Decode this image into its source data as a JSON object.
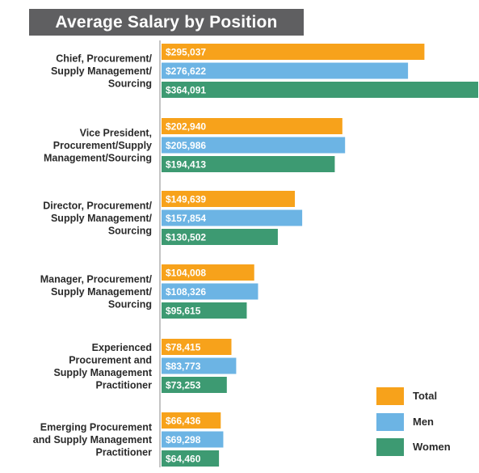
{
  "chart_data": {
    "type": "bar",
    "orientation": "horizontal",
    "title": "Average Salary by Position",
    "categories": [
      [
        "Chief, Procurement/",
        "Supply Management/",
        "Sourcing"
      ],
      [
        "Vice President,",
        "Procurement/Supply",
        "Management/Sourcing"
      ],
      [
        "Director, Procurement/",
        "Supply Management/",
        "Sourcing"
      ],
      [
        "Manager, Procurement/",
        "Supply Management/",
        "Sourcing"
      ],
      [
        "Experienced",
        "Procurement and",
        "Supply Management",
        "Practitioner"
      ],
      [
        "Emerging Procurement",
        "and Supply Management",
        "Practitioner"
      ]
    ],
    "series": [
      {
        "name": "Total",
        "color": "#f7a21b",
        "values": [
          295037,
          202940,
          149639,
          104008,
          78415,
          66436
        ],
        "labels": [
          "$295,037",
          "$202,940",
          "$149,639",
          "$104,008",
          "$78,415",
          "$66,436"
        ]
      },
      {
        "name": "Men",
        "color": "#6cb4e4",
        "values": [
          276622,
          205986,
          157854,
          108326,
          83773,
          69298
        ],
        "labels": [
          "$276,622",
          "$205,986",
          "$157,854",
          "$108,326",
          "$83,773",
          "$69,298"
        ]
      },
      {
        "name": "Women",
        "color": "#3d9a72",
        "values": [
          364091,
          194413,
          130502,
          95615,
          73253,
          64460
        ],
        "labels": [
          "$364,091",
          "$194,413",
          "$130,502",
          "$95,615",
          "$73,253",
          "$64,460"
        ]
      }
    ],
    "legend": "bottom-right",
    "grid": false
  }
}
